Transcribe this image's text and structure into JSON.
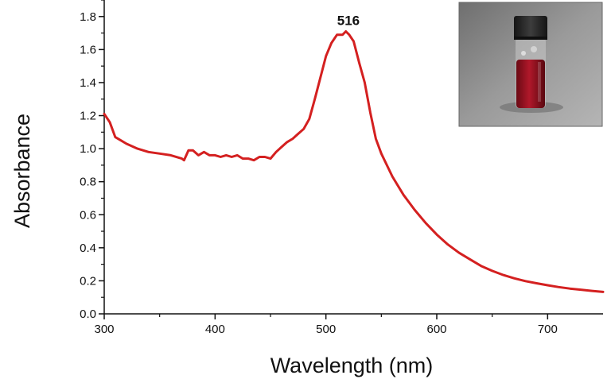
{
  "chart_data": {
    "type": "line",
    "xlabel": "Wavelength (nm)",
    "ylabel": "Absorbance",
    "xlim": [
      300,
      750
    ],
    "ylim": [
      0.0,
      1.9
    ],
    "x_ticks": [
      {
        "value": 300,
        "label": "300"
      },
      {
        "value": 400,
        "label": "400"
      },
      {
        "value": 500,
        "label": "500"
      },
      {
        "value": 600,
        "label": "600"
      },
      {
        "value": 700,
        "label": "700"
      }
    ],
    "y_ticks": [
      {
        "value": 0.0,
        "label": "0.0"
      },
      {
        "value": 0.2,
        "label": "0.2"
      },
      {
        "value": 0.4,
        "label": "0.4"
      },
      {
        "value": 0.6,
        "label": "0.6"
      },
      {
        "value": 0.8,
        "label": "0.8"
      },
      {
        "value": 1.0,
        "label": "1.0"
      },
      {
        "value": 1.2,
        "label": "1.2"
      },
      {
        "value": 1.4,
        "label": "1.4"
      },
      {
        "value": 1.6,
        "label": "1.6"
      },
      {
        "value": 1.8,
        "label": "1.8"
      }
    ],
    "grid": false,
    "legend": "none",
    "series": [
      {
        "color": "#d42020",
        "x": [
          300,
          305,
          310,
          315,
          320,
          330,
          340,
          350,
          360,
          370,
          372,
          376,
          380,
          385,
          390,
          395,
          400,
          405,
          410,
          415,
          420,
          425,
          430,
          435,
          440,
          445,
          450,
          455,
          460,
          465,
          470,
          475,
          480,
          485,
          490,
          495,
          500,
          505,
          510,
          515,
          518,
          521,
          525,
          530,
          535,
          540,
          545,
          550,
          555,
          560,
          570,
          580,
          590,
          600,
          610,
          620,
          630,
          640,
          650,
          660,
          670,
          680,
          690,
          700,
          710,
          720,
          730,
          740,
          750
        ],
        "y": [
          1.21,
          1.16,
          1.07,
          1.05,
          1.03,
          1.0,
          0.98,
          0.97,
          0.96,
          0.94,
          0.93,
          0.99,
          0.99,
          0.96,
          0.98,
          0.96,
          0.96,
          0.95,
          0.96,
          0.95,
          0.96,
          0.94,
          0.94,
          0.93,
          0.95,
          0.95,
          0.94,
          0.98,
          1.01,
          1.04,
          1.06,
          1.09,
          1.12,
          1.18,
          1.3,
          1.43,
          1.56,
          1.64,
          1.69,
          1.69,
          1.71,
          1.69,
          1.65,
          1.52,
          1.4,
          1.22,
          1.06,
          0.97,
          0.9,
          0.83,
          0.72,
          0.63,
          0.55,
          0.48,
          0.42,
          0.37,
          0.33,
          0.29,
          0.26,
          0.235,
          0.215,
          0.198,
          0.185,
          0.173,
          0.162,
          0.153,
          0.146,
          0.139,
          0.133
        ]
      }
    ],
    "annotations": [
      {
        "text": "516",
        "x": 516,
        "y": 1.71
      }
    ]
  },
  "inset": {
    "icon": "vial-photo-icon",
    "background": "#8a8a8a",
    "liquid_color": "#9a1020",
    "cap_color": "#2a2a2a"
  }
}
